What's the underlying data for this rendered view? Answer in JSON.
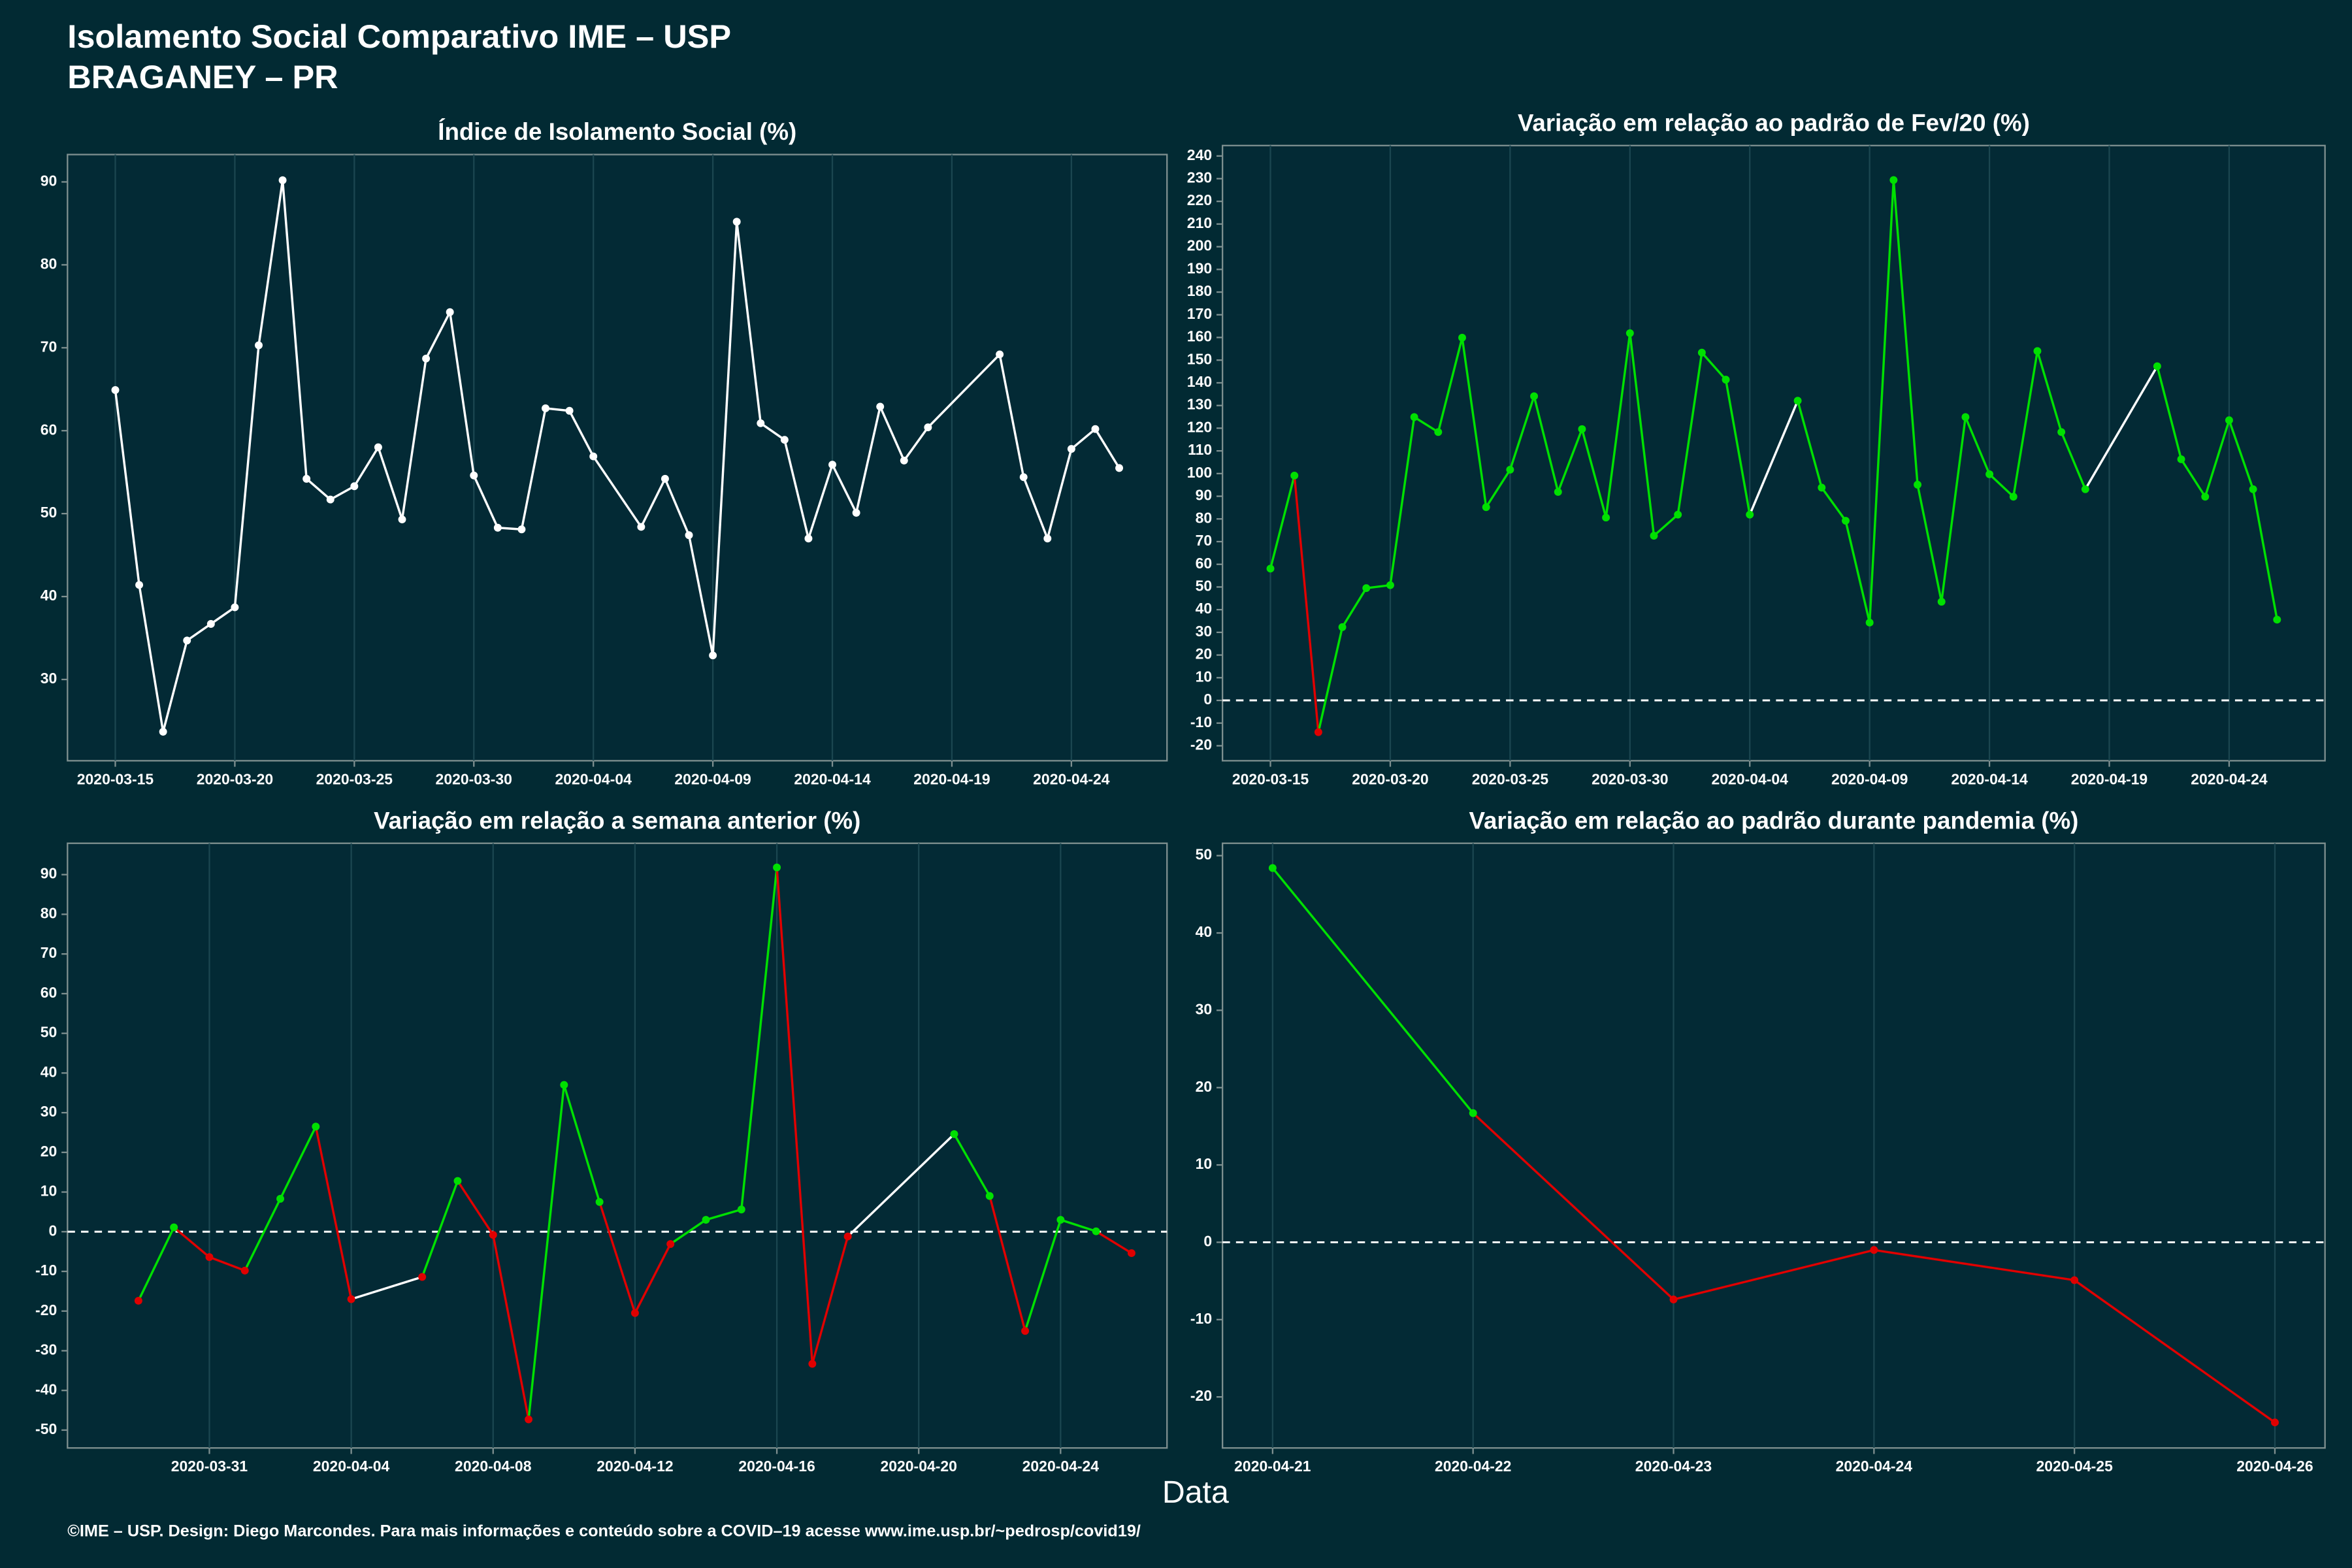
{
  "title": "Isolamento Social Comparativo IME – USP",
  "subtitle": "BRAGANEY – PR",
  "xlabel": "Data",
  "caption": "©IME – USP. Design: Diego Marcondes. Para mais informações e conteúdo sobre a COVID–19 acesse www.ime.usp.br/~pedrosp/covid19/",
  "chart_data": [
    {
      "type": "line",
      "title": "Índice de Isolamento Social (%)",
      "color": "#ffffff",
      "x": [
        "2020-03-15",
        "2020-03-16",
        "2020-03-17",
        "2020-03-18",
        "2020-03-19",
        "2020-03-20",
        "2020-03-21",
        "2020-03-22",
        "2020-03-23",
        "2020-03-24",
        "2020-03-25",
        "2020-03-26",
        "2020-03-27",
        "2020-03-28",
        "2020-03-29",
        "2020-03-30",
        "2020-03-31",
        "2020-04-01",
        "2020-04-02",
        "2020-04-03",
        "2020-04-04",
        "2020-04-06",
        "2020-04-07",
        "2020-04-08",
        "2020-04-09",
        "2020-04-10",
        "2020-04-11",
        "2020-04-12",
        "2020-04-13",
        "2020-04-14",
        "2020-04-15",
        "2020-04-16",
        "2020-04-17",
        "2020-04-18",
        "2020-04-21",
        "2020-04-22",
        "2020-04-23",
        "2020-04-24",
        "2020-04-25",
        "2020-04-26"
      ],
      "values": [
        64.9,
        41.4,
        23.7,
        34.7,
        36.7,
        38.7,
        70.3,
        90.2,
        54.2,
        51.7,
        53.3,
        58.0,
        49.3,
        68.7,
        74.3,
        54.6,
        48.3,
        48.1,
        62.7,
        62.4,
        56.9,
        48.4,
        54.2,
        47.4,
        32.9,
        85.2,
        60.9,
        58.9,
        47.0,
        55.9,
        50.1,
        62.9,
        56.4,
        60.4,
        69.2,
        54.4,
        47.0,
        57.8,
        60.2,
        55.5
      ],
      "xlim": [
        "2020-03-13",
        "2020-04-28"
      ],
      "xticks": [
        "2020-03-15",
        "2020-03-20",
        "2020-03-25",
        "2020-03-30",
        "2020-04-04",
        "2020-04-09",
        "2020-04-14",
        "2020-04-19",
        "2020-04-24"
      ],
      "ylim": [
        20.2,
        93.3
      ],
      "yticks": [
        30,
        40,
        50,
        60,
        70,
        80,
        90
      ],
      "zero_line": false
    },
    {
      "type": "line",
      "title": "Variação em relação ao padrão de Fev/20 (%)",
      "colors": {
        "positive": "#00e000",
        "negative": "#e00000",
        "gap": "#ffffff"
      },
      "x": [
        "2020-03-15",
        "2020-03-16",
        "2020-03-17",
        "2020-03-18",
        "2020-03-19",
        "2020-03-20",
        "2020-03-21",
        "2020-03-22",
        "2020-03-23",
        "2020-03-24",
        "2020-03-25",
        "2020-03-26",
        "2020-03-27",
        "2020-03-28",
        "2020-03-29",
        "2020-03-30",
        "2020-03-31",
        "2020-04-01",
        "2020-04-02",
        "2020-04-03",
        "2020-04-04",
        "2020-04-06",
        "2020-04-07",
        "2020-04-08",
        "2020-04-09",
        "2020-04-10",
        "2020-04-11",
        "2020-04-12",
        "2020-04-13",
        "2020-04-14",
        "2020-04-15",
        "2020-04-16",
        "2020-04-17",
        "2020-04-18",
        "2020-04-21",
        "2020-04-22",
        "2020-04-23",
        "2020-04-24",
        "2020-04-25",
        "2020-04-26"
      ],
      "values": [
        58.1,
        99.1,
        -14,
        32.3,
        49.5,
        50.8,
        124.9,
        118.3,
        159.9,
        85.2,
        101.7,
        134.1,
        91.9,
        119.6,
        80.6,
        161.9,
        72.6,
        81.9,
        153.3,
        141.4,
        81.9,
        132.1,
        93.8,
        79.2,
        34.3,
        229.4,
        95.1,
        43.5,
        124.9,
        99.7,
        89.8,
        154.0,
        118.3,
        93.1,
        147.3,
        106.3,
        89.8,
        123.5,
        93.1,
        35.6
      ],
      "xlim": [
        "2020-03-13",
        "2020-04-28"
      ],
      "xticks": [
        "2020-03-15",
        "2020-03-20",
        "2020-03-25",
        "2020-03-30",
        "2020-04-04",
        "2020-04-09",
        "2020-04-14",
        "2020-04-19",
        "2020-04-24"
      ],
      "ylim": [
        -26.6,
        244.6
      ],
      "yticks": [
        -20,
        -10,
        0,
        10,
        20,
        30,
        40,
        50,
        60,
        70,
        80,
        90,
        100,
        110,
        120,
        130,
        140,
        150,
        160,
        170,
        180,
        190,
        200,
        210,
        220,
        230,
        240
      ],
      "zero_line": true
    },
    {
      "type": "line",
      "title": "Variação em relação a semana anterior (%)",
      "colors": {
        "positive": "#00e000",
        "negative": "#e00000",
        "gap": "#ffffff"
      },
      "x": [
        "2020-03-29",
        "2020-03-30",
        "2020-03-31",
        "2020-04-01",
        "2020-04-02",
        "2020-04-03",
        "2020-04-04",
        "2020-04-06",
        "2020-04-07",
        "2020-04-08",
        "2020-04-09",
        "2020-04-10",
        "2020-04-11",
        "2020-04-12",
        "2020-04-13",
        "2020-04-14",
        "2020-04-15",
        "2020-04-16",
        "2020-04-17",
        "2020-04-18",
        "2020-04-21",
        "2020-04-22",
        "2020-04-23",
        "2020-04-24",
        "2020-04-25",
        "2020-04-26"
      ],
      "values": [
        -17.4,
        1.1,
        -6.4,
        -9.8,
        8.3,
        26.5,
        -17.0,
        -11.4,
        12.8,
        -0.8,
        -47.3,
        37.0,
        7.5,
        -20.5,
        -3.1,
        3.0,
        5.6,
        91.8,
        -33.3,
        -1.2,
        24.6,
        9.0,
        -25.0,
        3.0,
        0.1,
        -5.4
      ],
      "xlim": [
        "2020-03-27",
        "2020-04-27"
      ],
      "xticks": [
        "2020-03-31",
        "2020-04-04",
        "2020-04-08",
        "2020-04-12",
        "2020-04-16",
        "2020-04-20",
        "2020-04-24"
      ],
      "ylim": [
        -54.5,
        97.9
      ],
      "yticks": [
        -50,
        -40,
        -30,
        -20,
        -10,
        0,
        10,
        20,
        30,
        40,
        50,
        60,
        70,
        80,
        90
      ],
      "zero_line": true
    },
    {
      "type": "line",
      "title": "Variação em relação ao padrão durante pandemia (%)",
      "colors": {
        "positive": "#00e000",
        "negative": "#e00000",
        "gap": "#ffffff"
      },
      "x": [
        "2020-04-21",
        "2020-04-22",
        "2020-04-23",
        "2020-04-24",
        "2020-04-25",
        "2020-04-26"
      ],
      "values": [
        48.4,
        16.7,
        -7.4,
        -1.0,
        -4.9,
        -23.3
      ],
      "xlim": [
        "2020-04-20T18:00:00Z",
        "2020-04-26T06:00:00Z"
      ],
      "xticks": [
        "2020-04-21",
        "2020-04-22",
        "2020-04-23",
        "2020-04-24",
        "2020-04-25",
        "2020-04-26"
      ],
      "ylim": [
        -26.6,
        51.6
      ],
      "yticks": [
        -20,
        -10,
        0,
        10,
        20,
        30,
        40,
        50
      ],
      "zero_line": true
    }
  ]
}
